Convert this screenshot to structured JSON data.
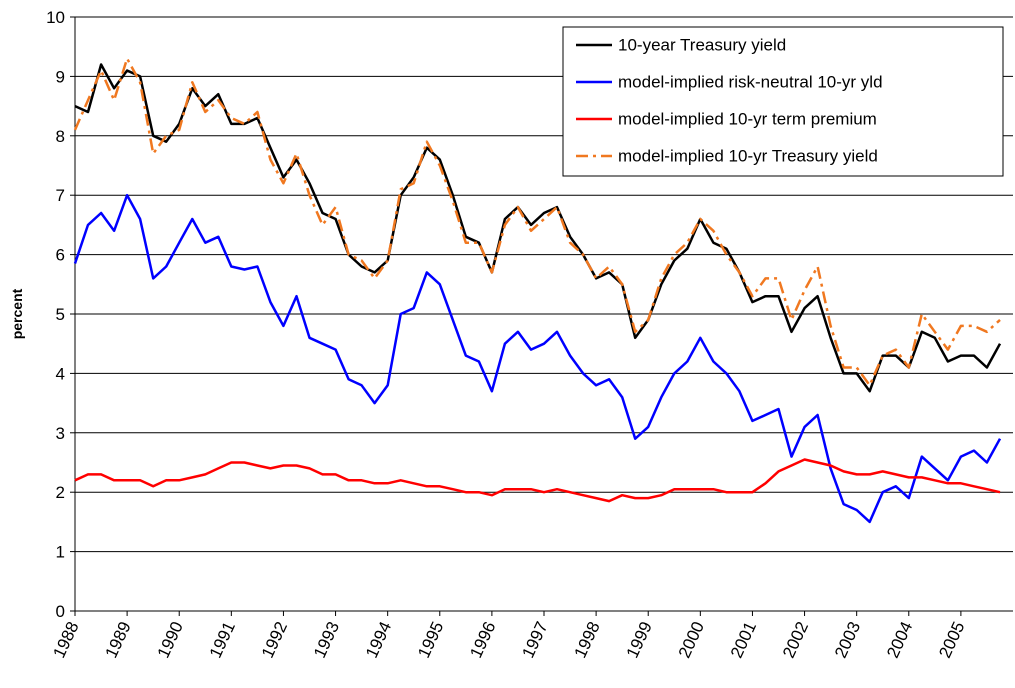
{
  "chart_data": {
    "type": "line",
    "y_label": "percent",
    "xlim": [
      1988,
      2006
    ],
    "xticks": [
      1988,
      1989,
      1990,
      1991,
      1992,
      1993,
      1994,
      1995,
      1996,
      1997,
      1998,
      1999,
      2000,
      2001,
      2002,
      2003,
      2004,
      2005
    ],
    "ylim": [
      0,
      10
    ],
    "yticks": [
      0,
      1,
      2,
      3,
      4,
      5,
      6,
      7,
      8,
      9,
      10
    ],
    "grid": true,
    "legend": "top-right",
    "x": [
      1988,
      1988.25,
      1988.5,
      1988.75,
      1989,
      1989.25,
      1989.5,
      1989.75,
      1990,
      1990.25,
      1990.5,
      1990.75,
      1991,
      1991.25,
      1991.5,
      1991.75,
      1992,
      1992.25,
      1992.5,
      1992.75,
      1993,
      1993.25,
      1993.5,
      1993.75,
      1994,
      1994.25,
      1994.5,
      1994.75,
      1995,
      1995.25,
      1995.5,
      1995.75,
      1996,
      1996.25,
      1996.5,
      1996.75,
      1997,
      1997.25,
      1997.5,
      1997.75,
      1998,
      1998.25,
      1998.5,
      1998.75,
      1999,
      1999.25,
      1999.5,
      1999.75,
      2000,
      2000.25,
      2000.5,
      2000.75,
      2001,
      2001.25,
      2001.5,
      2001.75,
      2002,
      2002.25,
      2002.5,
      2002.75,
      2003,
      2003.25,
      2003.5,
      2003.75,
      2004,
      2004.25,
      2004.5,
      2004.75,
      2005,
      2005.25,
      2005.5,
      2005.75
    ],
    "series": [
      {
        "name": "10-year Treasury yield",
        "color": "#000000",
        "dash": "none",
        "values": [
          8.5,
          8.4,
          9.2,
          8.8,
          9.1,
          9.0,
          8.0,
          7.9,
          8.2,
          8.8,
          8.5,
          8.7,
          8.2,
          8.2,
          8.3,
          7.8,
          7.3,
          7.6,
          7.2,
          6.7,
          6.6,
          6.0,
          5.8,
          5.7,
          5.9,
          7.0,
          7.3,
          7.8,
          7.6,
          7.0,
          6.3,
          6.2,
          5.7,
          6.6,
          6.8,
          6.5,
          6.7,
          6.8,
          6.3,
          6.0,
          5.6,
          5.7,
          5.5,
          4.6,
          4.9,
          5.5,
          5.9,
          6.1,
          6.6,
          6.2,
          6.1,
          5.7,
          5.2,
          5.3,
          5.3,
          4.7,
          5.1,
          5.3,
          4.6,
          4.0,
          4.0,
          3.7,
          4.3,
          4.3,
          4.1,
          4.7,
          4.6,
          4.2,
          4.3,
          4.3,
          4.1,
          4.5
        ]
      },
      {
        "name": "model-implied risk-neutral 10-yr yld",
        "color": "#0000ff",
        "dash": "none",
        "values": [
          5.85,
          6.5,
          6.7,
          6.4,
          7.0,
          6.6,
          5.6,
          5.8,
          6.2,
          6.6,
          6.2,
          6.3,
          5.8,
          5.75,
          5.8,
          5.2,
          4.8,
          5.3,
          4.6,
          4.5,
          4.4,
          3.9,
          3.8,
          3.5,
          3.8,
          5.0,
          5.1,
          5.7,
          5.5,
          4.9,
          4.3,
          4.2,
          3.7,
          4.5,
          4.7,
          4.4,
          4.5,
          4.7,
          4.3,
          4.0,
          3.8,
          3.9,
          3.6,
          2.9,
          3.1,
          3.6,
          4.0,
          4.2,
          4.6,
          4.2,
          4.0,
          3.7,
          3.2,
          3.3,
          3.4,
          2.6,
          3.1,
          3.3,
          2.4,
          1.8,
          1.7,
          1.5,
          2.0,
          2.1,
          1.9,
          2.6,
          2.4,
          2.2,
          2.6,
          2.7,
          2.5,
          2.9
        ]
      },
      {
        "name": "model-implied 10-yr term premium",
        "color": "#ff0000",
        "dash": "none",
        "values": [
          2.2,
          2.3,
          2.3,
          2.2,
          2.2,
          2.2,
          2.1,
          2.2,
          2.2,
          2.25,
          2.3,
          2.4,
          2.5,
          2.5,
          2.45,
          2.4,
          2.45,
          2.45,
          2.4,
          2.3,
          2.3,
          2.2,
          2.2,
          2.15,
          2.15,
          2.2,
          2.15,
          2.1,
          2.1,
          2.05,
          2.0,
          2.0,
          1.95,
          2.05,
          2.05,
          2.05,
          2.0,
          2.05,
          2.0,
          1.95,
          1.9,
          1.85,
          1.95,
          1.9,
          1.9,
          1.95,
          2.05,
          2.05,
          2.05,
          2.05,
          2.0,
          2.0,
          2.0,
          2.15,
          2.35,
          2.45,
          2.55,
          2.5,
          2.45,
          2.35,
          2.3,
          2.3,
          2.35,
          2.3,
          2.25,
          2.25,
          2.2,
          2.15,
          2.15,
          2.1,
          2.05,
          2.0
        ]
      },
      {
        "name": "model-implied 10-yr Treasury yield",
        "color": "#f07820",
        "dash": "12,5,3,5",
        "values": [
          8.1,
          8.6,
          9.1,
          8.6,
          9.3,
          8.9,
          7.7,
          8.0,
          8.1,
          8.9,
          8.4,
          8.6,
          8.3,
          8.2,
          8.4,
          7.6,
          7.2,
          7.7,
          7.0,
          6.5,
          6.8,
          6.0,
          5.9,
          5.6,
          5.9,
          7.1,
          7.2,
          7.9,
          7.5,
          6.9,
          6.2,
          6.2,
          5.7,
          6.5,
          6.8,
          6.4,
          6.6,
          6.8,
          6.2,
          6.0,
          5.6,
          5.8,
          5.5,
          4.7,
          4.9,
          5.6,
          6.0,
          6.2,
          6.6,
          6.4,
          6.0,
          5.7,
          5.3,
          5.6,
          5.6,
          4.9,
          5.4,
          5.8,
          4.8,
          4.1,
          4.1,
          3.8,
          4.3,
          4.4,
          4.1,
          5.0,
          4.7,
          4.4,
          4.8,
          4.8,
          4.7,
          4.9
        ]
      }
    ]
  }
}
